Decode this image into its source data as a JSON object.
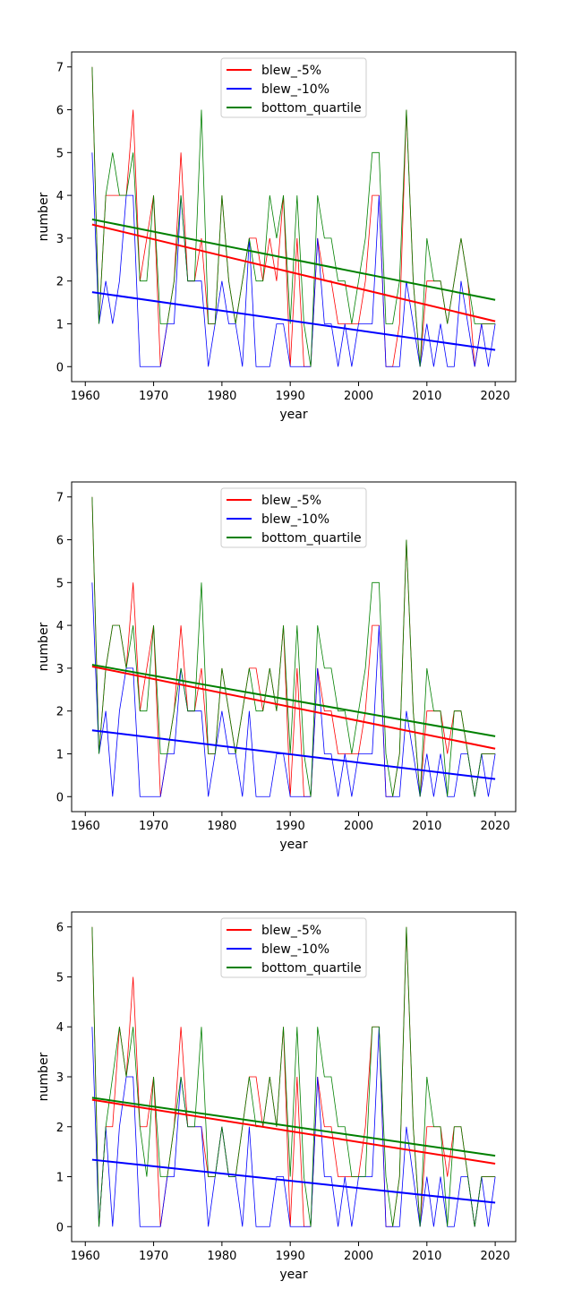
{
  "chart_data": [
    {
      "type": "line",
      "xlabel": "year",
      "ylabel": "number",
      "xlim": [
        1958,
        2023
      ],
      "ylim": [
        -0.35,
        7.35
      ],
      "xticks": [
        1960,
        1970,
        1980,
        1990,
        2000,
        2010,
        2020
      ],
      "yticks": [
        0,
        1,
        2,
        3,
        4,
        5,
        6,
        7
      ],
      "legend_position": "top-center",
      "x": [
        1961,
        1962,
        1963,
        1964,
        1965,
        1966,
        1967,
        1968,
        1969,
        1970,
        1971,
        1972,
        1973,
        1974,
        1975,
        1976,
        1977,
        1978,
        1979,
        1980,
        1981,
        1982,
        1983,
        1984,
        1985,
        1986,
        1987,
        1988,
        1989,
        1990,
        1991,
        1992,
        1993,
        1994,
        1995,
        1996,
        1997,
        1998,
        1999,
        2000,
        2001,
        2002,
        2003,
        2004,
        2005,
        2006,
        2007,
        2008,
        2009,
        2010,
        2011,
        2012,
        2013,
        2014,
        2015,
        2016,
        2017,
        2018,
        2019,
        2020
      ],
      "series": [
        {
          "name": "blew_-5%",
          "color": "#ff0000",
          "values": [
            7,
            1,
            4,
            4,
            4,
            4,
            6,
            2,
            3,
            4,
            0,
            1,
            2,
            5,
            2,
            2,
            3,
            1,
            1,
            4,
            2,
            1,
            2,
            3,
            3,
            2,
            3,
            2,
            4,
            0,
            3,
            0,
            0,
            3,
            2,
            2,
            1,
            1,
            1,
            1,
            2,
            4,
            4,
            0,
            0,
            1,
            6,
            2,
            0,
            2,
            2,
            2,
            1,
            2,
            3,
            2,
            0,
            1,
            1,
            1
          ],
          "trend": [
            3.32,
            1.06
          ]
        },
        {
          "name": "blew_-10%",
          "color": "#0000ff",
          "values": [
            5,
            1,
            2,
            1,
            2,
            4,
            4,
            0,
            0,
            0,
            0,
            1,
            1,
            4,
            2,
            2,
            2,
            0,
            1,
            2,
            1,
            1,
            0,
            3,
            0,
            0,
            0,
            1,
            1,
            0,
            0,
            0,
            0,
            3,
            1,
            1,
            0,
            1,
            0,
            1,
            1,
            1,
            4,
            0,
            0,
            0,
            2,
            1,
            0,
            1,
            0,
            1,
            0,
            0,
            2,
            1,
            0,
            1,
            0,
            1
          ],
          "trend": [
            1.74,
            0.39
          ]
        },
        {
          "name": "bottom_quartile",
          "color": "#008000",
          "values": [
            7,
            1,
            4,
            5,
            4,
            4,
            5,
            2,
            2,
            4,
            1,
            1,
            2,
            4,
            2,
            2,
            6,
            1,
            1,
            4,
            2,
            1,
            2,
            3,
            2,
            2,
            4,
            3,
            4,
            1,
            4,
            1,
            0,
            4,
            3,
            3,
            2,
            2,
            1,
            2,
            3,
            5,
            5,
            1,
            1,
            2,
            6,
            2,
            0,
            3,
            2,
            2,
            1,
            2,
            3,
            2,
            1,
            1,
            1,
            1
          ],
          "trend": [
            3.44,
            1.56
          ]
        }
      ]
    },
    {
      "type": "line",
      "xlabel": "year",
      "ylabel": "number",
      "xlim": [
        1958,
        2023
      ],
      "ylim": [
        -0.35,
        7.35
      ],
      "xticks": [
        1960,
        1970,
        1980,
        1990,
        2000,
        2010,
        2020
      ],
      "yticks": [
        0,
        1,
        2,
        3,
        4,
        5,
        6,
        7
      ],
      "legend_position": "top-center",
      "x": [
        1961,
        1962,
        1963,
        1964,
        1965,
        1966,
        1967,
        1968,
        1969,
        1970,
        1971,
        1972,
        1973,
        1974,
        1975,
        1976,
        1977,
        1978,
        1979,
        1980,
        1981,
        1982,
        1983,
        1984,
        1985,
        1986,
        1987,
        1988,
        1989,
        1990,
        1991,
        1992,
        1993,
        1994,
        1995,
        1996,
        1997,
        1998,
        1999,
        2000,
        2001,
        2002,
        2003,
        2004,
        2005,
        2006,
        2007,
        2008,
        2009,
        2010,
        2011,
        2012,
        2013,
        2014,
        2015,
        2016,
        2017,
        2018,
        2019,
        2020
      ],
      "series": [
        {
          "name": "blew_-5%",
          "color": "#ff0000",
          "values": [
            7,
            1,
            3,
            4,
            4,
            3,
            5,
            2,
            3,
            4,
            0,
            1,
            2,
            4,
            2,
            2,
            3,
            1,
            1,
            3,
            2,
            1,
            2,
            3,
            3,
            2,
            3,
            2,
            4,
            0,
            3,
            0,
            0,
            3,
            2,
            2,
            1,
            1,
            1,
            1,
            2,
            4,
            4,
            0,
            0,
            1,
            6,
            2,
            0,
            2,
            2,
            2,
            1,
            2,
            2,
            1,
            0,
            1,
            1,
            1
          ],
          "trend": [
            3.04,
            1.12
          ]
        },
        {
          "name": "blew_-10%",
          "color": "#0000ff",
          "values": [
            5,
            1,
            2,
            0,
            2,
            3,
            3,
            0,
            0,
            0,
            0,
            1,
            1,
            3,
            2,
            2,
            2,
            0,
            1,
            2,
            1,
            1,
            0,
            2,
            0,
            0,
            0,
            1,
            1,
            0,
            0,
            0,
            0,
            3,
            1,
            1,
            0,
            1,
            0,
            1,
            1,
            1,
            4,
            0,
            0,
            0,
            2,
            1,
            0,
            1,
            0,
            1,
            0,
            0,
            1,
            1,
            0,
            1,
            0,
            1
          ],
          "trend": [
            1.55,
            0.41
          ]
        },
        {
          "name": "bottom_quartile",
          "color": "#008000",
          "values": [
            7,
            1,
            3,
            4,
            4,
            3,
            4,
            2,
            2,
            4,
            1,
            1,
            2,
            3,
            2,
            2,
            5,
            1,
            1,
            3,
            2,
            1,
            2,
            3,
            2,
            2,
            3,
            2,
            4,
            1,
            4,
            1,
            0,
            4,
            3,
            3,
            2,
            2,
            1,
            2,
            3,
            5,
            5,
            1,
            0,
            1,
            6,
            2,
            0,
            3,
            2,
            2,
            0,
            2,
            2,
            1,
            0,
            1,
            1,
            1
          ],
          "trend": [
            3.08,
            1.41
          ]
        }
      ]
    },
    {
      "type": "line",
      "xlabel": "year",
      "ylabel": "number",
      "xlim": [
        1958,
        2023
      ],
      "ylim": [
        -0.3,
        6.3
      ],
      "xticks": [
        1960,
        1970,
        1980,
        1990,
        2000,
        2010,
        2020
      ],
      "yticks": [
        0,
        1,
        2,
        3,
        4,
        5,
        6
      ],
      "legend_position": "top-center",
      "x": [
        1961,
        1962,
        1963,
        1964,
        1965,
        1966,
        1967,
        1968,
        1969,
        1970,
        1971,
        1972,
        1973,
        1974,
        1975,
        1976,
        1977,
        1978,
        1979,
        1980,
        1981,
        1982,
        1983,
        1984,
        1985,
        1986,
        1987,
        1988,
        1989,
        1990,
        1991,
        1992,
        1993,
        1994,
        1995,
        1996,
        1997,
        1998,
        1999,
        2000,
        2001,
        2002,
        2003,
        2004,
        2005,
        2006,
        2007,
        2008,
        2009,
        2010,
        2011,
        2012,
        2013,
        2014,
        2015,
        2016,
        2017,
        2018,
        2019,
        2020
      ],
      "series": [
        {
          "name": "blew_-5%",
          "color": "#ff0000",
          "values": [
            6,
            0,
            2,
            2,
            4,
            3,
            5,
            2,
            2,
            3,
            0,
            1,
            2,
            4,
            2,
            2,
            2,
            1,
            1,
            2,
            1,
            1,
            2,
            3,
            3,
            2,
            3,
            2,
            4,
            0,
            3,
            0,
            0,
            3,
            2,
            2,
            1,
            1,
            1,
            1,
            2,
            4,
            4,
            0,
            0,
            1,
            6,
            2,
            0,
            2,
            2,
            2,
            1,
            2,
            2,
            1,
            0,
            1,
            1,
            1
          ],
          "trend": [
            2.54,
            1.26
          ]
        },
        {
          "name": "blew_-10%",
          "color": "#0000ff",
          "values": [
            4,
            0,
            2,
            0,
            2,
            3,
            3,
            0,
            0,
            0,
            0,
            1,
            1,
            3,
            2,
            2,
            2,
            0,
            1,
            2,
            1,
            1,
            0,
            2,
            0,
            0,
            0,
            1,
            1,
            0,
            0,
            0,
            0,
            3,
            1,
            1,
            0,
            1,
            0,
            1,
            1,
            1,
            4,
            0,
            0,
            0,
            2,
            1,
            0,
            1,
            0,
            1,
            0,
            0,
            1,
            1,
            0,
            1,
            0,
            1
          ],
          "trend": [
            1.34,
            0.48
          ]
        },
        {
          "name": "bottom_quartile",
          "color": "#008000",
          "values": [
            6,
            0,
            2,
            3,
            4,
            3,
            4,
            2,
            1,
            3,
            1,
            1,
            2,
            3,
            2,
            2,
            4,
            1,
            1,
            2,
            1,
            1,
            2,
            3,
            2,
            2,
            3,
            2,
            4,
            1,
            4,
            1,
            0,
            4,
            3,
            3,
            2,
            2,
            1,
            1,
            1,
            4,
            4,
            1,
            0,
            1,
            6,
            2,
            0,
            3,
            2,
            2,
            0,
            2,
            2,
            1,
            0,
            1,
            1,
            1
          ],
          "trend": [
            2.58,
            1.42
          ]
        }
      ]
    }
  ]
}
